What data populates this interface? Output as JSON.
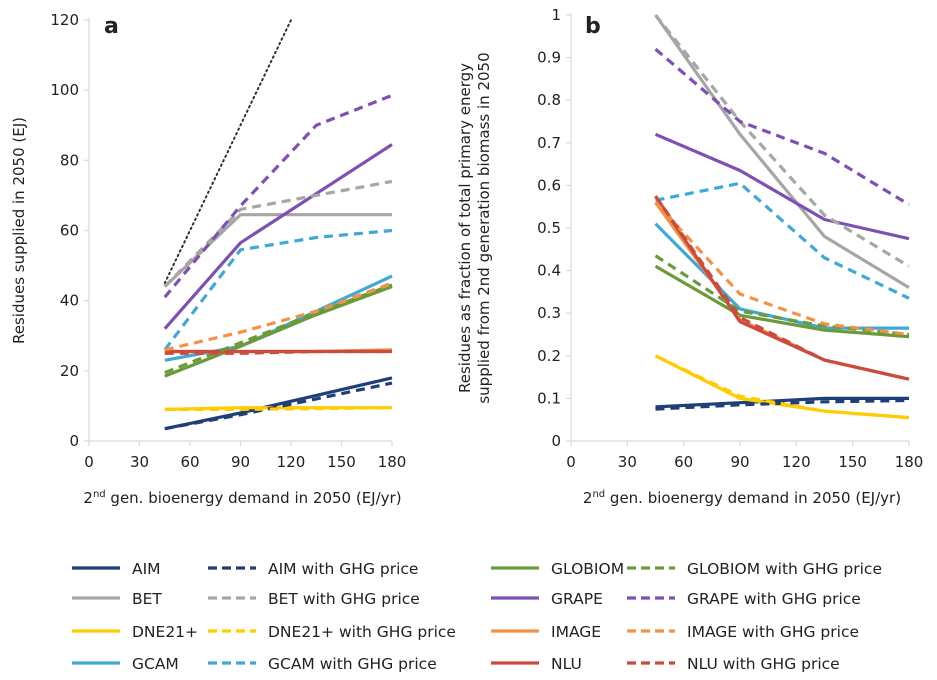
{
  "colors": {
    "AIM": "#1f3f78",
    "BET": "#a6a6a6",
    "DNE21+": "#ffcc00",
    "GCAM": "#3fa9d6",
    "GLOBIOM": "#6b9a3a",
    "GRAPE": "#7d50b4",
    "IMAGE": "#f39245",
    "NLU": "#cc4b3f",
    "reference": "#333333"
  },
  "chart_data": [
    {
      "type": "line",
      "panel_label": "a",
      "xlabel_pre": "2",
      "xlabel_sup": "nd",
      "xlabel_post": " gen. bioenergy demand in 2050 (EJ/yr)",
      "ylabel": "Residues supplied in 2050 (EJ)",
      "xlim": [
        0,
        180
      ],
      "ylim": [
        0,
        120
      ],
      "xticks": [
        "0",
        "30",
        "60",
        "90",
        "120",
        "150",
        "180"
      ],
      "yticks": [
        "0",
        "20",
        "40",
        "60",
        "80",
        "100",
        "120"
      ],
      "grid": false,
      "reference_line": {
        "x": [
          45,
          120
        ],
        "y": [
          45,
          120
        ],
        "style": "dotted"
      },
      "series": [
        {
          "name": "AIM",
          "model": "AIM",
          "dashed": false,
          "x": [
            45,
            90,
            135,
            180
          ],
          "y": [
            3.5,
            8,
            13,
            18
          ]
        },
        {
          "name": "AIM with GHG price",
          "model": "AIM",
          "dashed": true,
          "x": [
            45,
            90,
            135,
            180
          ],
          "y": [
            3.5,
            7.5,
            12,
            16.5
          ]
        },
        {
          "name": "BET",
          "model": "BET",
          "dashed": false,
          "x": [
            45,
            90,
            180
          ],
          "y": [
            44,
            64.5,
            64.5
          ]
        },
        {
          "name": "BET with GHG price",
          "model": "BET",
          "dashed": true,
          "x": [
            45,
            90,
            180
          ],
          "y": [
            44,
            66,
            74
          ]
        },
        {
          "name": "DNE21+",
          "model": "DNE21+",
          "dashed": false,
          "x": [
            45,
            90,
            180
          ],
          "y": [
            9,
            9.5,
            9.5
          ]
        },
        {
          "name": "DNE21+ with GHG price",
          "model": "DNE21+",
          "dashed": true,
          "x": [
            45,
            90,
            180
          ],
          "y": [
            9,
            9,
            9.5
          ]
        },
        {
          "name": "GCAM",
          "model": "GCAM",
          "dashed": false,
          "x": [
            45,
            90,
            180
          ],
          "y": [
            23,
            27,
            47
          ]
        },
        {
          "name": "GCAM with GHG price",
          "model": "GCAM",
          "dashed": true,
          "x": [
            45,
            90,
            135,
            180
          ],
          "y": [
            26,
            54.5,
            58,
            60
          ]
        },
        {
          "name": "GLOBIOM",
          "model": "GLOBIOM",
          "dashed": false,
          "x": [
            45,
            90,
            135,
            180
          ],
          "y": [
            18.5,
            27,
            36,
            44
          ]
        },
        {
          "name": "GLOBIOM with GHG price",
          "model": "GLOBIOM",
          "dashed": true,
          "x": [
            45,
            90,
            135,
            180
          ],
          "y": [
            19.5,
            28,
            36.5,
            44.5
          ]
        },
        {
          "name": "GRAPE",
          "model": "GRAPE",
          "dashed": false,
          "x": [
            45,
            90,
            180
          ],
          "y": [
            32,
            56.5,
            84.5
          ]
        },
        {
          "name": "GRAPE with GHG price",
          "model": "GRAPE",
          "dashed": true,
          "x": [
            45,
            90,
            135,
            180
          ],
          "y": [
            41,
            67,
            90,
            98.5
          ]
        },
        {
          "name": "IMAGE",
          "model": "IMAGE",
          "dashed": false,
          "x": [
            45,
            90,
            135,
            180
          ],
          "y": [
            25.5,
            25.5,
            25.5,
            26
          ]
        },
        {
          "name": "IMAGE with GHG price",
          "model": "IMAGE",
          "dashed": true,
          "x": [
            45,
            90,
            135,
            180
          ],
          "y": [
            26,
            31,
            37,
            45
          ]
        },
        {
          "name": "NLU",
          "model": "NLU",
          "dashed": false,
          "x": [
            45,
            90,
            135,
            180
          ],
          "y": [
            25.5,
            25.5,
            25.5,
            25.5
          ]
        },
        {
          "name": "NLU with GHG price",
          "model": "NLU",
          "dashed": true,
          "x": [
            45,
            90,
            135,
            180
          ],
          "y": [
            25,
            25,
            25.5,
            25.5
          ]
        }
      ]
    },
    {
      "type": "line",
      "panel_label": "b",
      "xlabel_pre": "2",
      "xlabel_sup": "nd",
      "xlabel_post": " gen.  bioenergy demand in 2050 (EJ/yr)",
      "ylabel_line1": "Residues as fraction of total primary energy",
      "ylabel_line2": "supplied from 2nd generation biomass in 2050",
      "xlim": [
        0,
        180
      ],
      "ylim": [
        0,
        1
      ],
      "xticks": [
        "0",
        "30",
        "60",
        "90",
        "120",
        "150",
        "180"
      ],
      "yticks": [
        "0",
        "0.1",
        "0.2",
        "0.3",
        "0.4",
        "0.5",
        "0.6",
        "0.7",
        "0.8",
        "0.9",
        "1"
      ],
      "grid": false,
      "series": [
        {
          "name": "AIM",
          "model": "AIM",
          "dashed": false,
          "x": [
            45,
            90,
            135,
            180
          ],
          "y": [
            0.08,
            0.09,
            0.1,
            0.1
          ]
        },
        {
          "name": "AIM with GHG price",
          "model": "AIM",
          "dashed": true,
          "x": [
            45,
            90,
            135,
            180
          ],
          "y": [
            0.075,
            0.085,
            0.092,
            0.095
          ]
        },
        {
          "name": "BET",
          "model": "BET",
          "dashed": false,
          "x": [
            45,
            90,
            135,
            180
          ],
          "y": [
            1.0,
            0.72,
            0.48,
            0.36
          ]
        },
        {
          "name": "BET with GHG price",
          "model": "BET",
          "dashed": true,
          "x": [
            45,
            90,
            135,
            180
          ],
          "y": [
            1.0,
            0.75,
            0.53,
            0.41
          ]
        },
        {
          "name": "DNE21+",
          "model": "DNE21+",
          "dashed": false,
          "x": [
            45,
            90,
            135,
            180
          ],
          "y": [
            0.2,
            0.1,
            0.07,
            0.055
          ]
        },
        {
          "name": "DNE21+ with GHG price",
          "model": "DNE21+",
          "dashed": true,
          "x": [
            45,
            90,
            135,
            180
          ],
          "y": [
            0.2,
            0.105,
            0.07,
            0.055
          ]
        },
        {
          "name": "GCAM",
          "model": "GCAM",
          "dashed": false,
          "x": [
            45,
            90,
            135,
            180
          ],
          "y": [
            0.51,
            0.31,
            0.265,
            0.265
          ]
        },
        {
          "name": "GCAM with GHG price",
          "model": "GCAM",
          "dashed": true,
          "x": [
            45,
            90,
            135,
            180
          ],
          "y": [
            0.565,
            0.605,
            0.43,
            0.335
          ]
        },
        {
          "name": "GLOBIOM",
          "model": "GLOBIOM",
          "dashed": false,
          "x": [
            45,
            90,
            135,
            180
          ],
          "y": [
            0.41,
            0.295,
            0.26,
            0.245
          ]
        },
        {
          "name": "GLOBIOM with GHG price",
          "model": "GLOBIOM",
          "dashed": true,
          "x": [
            45,
            90,
            135,
            180
          ],
          "y": [
            0.435,
            0.305,
            0.27,
            0.25
          ]
        },
        {
          "name": "GRAPE",
          "model": "GRAPE",
          "dashed": false,
          "x": [
            45,
            90,
            135,
            180
          ],
          "y": [
            0.72,
            0.635,
            0.52,
            0.475
          ]
        },
        {
          "name": "GRAPE with GHG price",
          "model": "GRAPE",
          "dashed": true,
          "x": [
            45,
            90,
            135,
            180
          ],
          "y": [
            0.92,
            0.75,
            0.675,
            0.555
          ]
        },
        {
          "name": "IMAGE",
          "model": "IMAGE",
          "dashed": false,
          "x": [
            45,
            90,
            135,
            180
          ],
          "y": [
            0.56,
            0.285,
            0.19,
            0.145
          ]
        },
        {
          "name": "IMAGE with GHG price",
          "model": "IMAGE",
          "dashed": true,
          "x": [
            45,
            90,
            135,
            180
          ],
          "y": [
            0.56,
            0.345,
            0.275,
            0.25
          ]
        },
        {
          "name": "NLU",
          "model": "NLU",
          "dashed": false,
          "x": [
            45,
            90,
            135,
            180
          ],
          "y": [
            0.575,
            0.28,
            0.19,
            0.145
          ]
        },
        {
          "name": "NLU with GHG price",
          "model": "NLU",
          "dashed": true,
          "x": [
            45,
            90,
            135,
            180
          ],
          "y": [
            0.575,
            0.29,
            0.19,
            0.145
          ]
        }
      ]
    }
  ],
  "legend": [
    {
      "label": "AIM",
      "model": "AIM",
      "dashed": false
    },
    {
      "label": "AIM with GHG price",
      "model": "AIM",
      "dashed": true
    },
    {
      "label": "GLOBIOM",
      "model": "GLOBIOM",
      "dashed": false
    },
    {
      "label": "GLOBIOM with GHG price",
      "model": "GLOBIOM",
      "dashed": true
    },
    {
      "label": "BET",
      "model": "BET",
      "dashed": false
    },
    {
      "label": "BET with GHG price",
      "model": "BET",
      "dashed": true
    },
    {
      "label": "GRAPE",
      "model": "GRAPE",
      "dashed": false
    },
    {
      "label": "GRAPE with GHG price",
      "model": "GRAPE",
      "dashed": true
    },
    {
      "label": "DNE21+",
      "model": "DNE21+",
      "dashed": false
    },
    {
      "label": "DNE21+ with GHG price",
      "model": "DNE21+",
      "dashed": true
    },
    {
      "label": "IMAGE",
      "model": "IMAGE",
      "dashed": false
    },
    {
      "label": "IMAGE with GHG price",
      "model": "IMAGE",
      "dashed": true
    },
    {
      "label": "GCAM",
      "model": "GCAM",
      "dashed": false
    },
    {
      "label": "GCAM with GHG price",
      "model": "GCAM",
      "dashed": true
    },
    {
      "label": "NLU",
      "model": "NLU",
      "dashed": false
    },
    {
      "label": "NLU with GHG price",
      "model": "NLU",
      "dashed": true
    }
  ]
}
